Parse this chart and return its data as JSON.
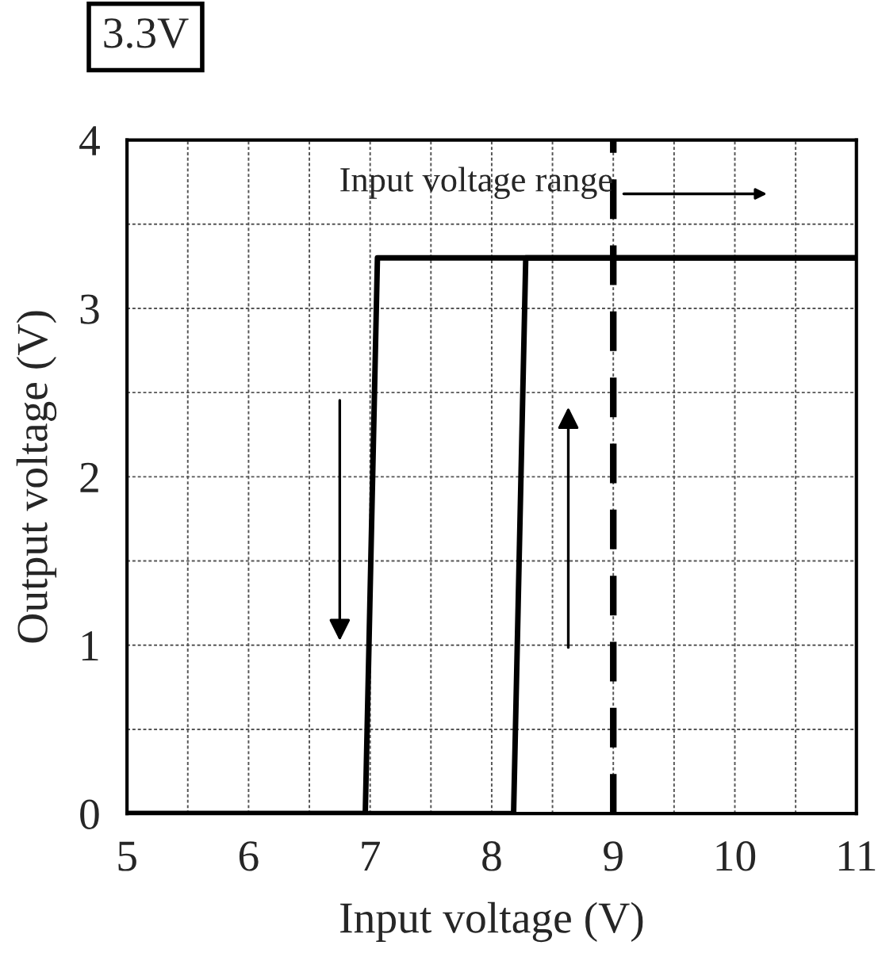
{
  "chart_data": {
    "type": "line",
    "title": "3.3V",
    "xlabel": "Input voltage (V)",
    "ylabel": "Output voltage (V)",
    "series": [
      {
        "color": "#000000",
        "x": [
          5,
          6.96,
          7.06,
          11
        ],
        "values": [
          0,
          0,
          3.3,
          3.3
        ]
      },
      {
        "color": "#000000",
        "x": [
          5,
          8.18,
          8.28,
          11
        ],
        "values": [
          0,
          0,
          3.3,
          3.3
        ]
      }
    ],
    "xlim": [
      5,
      11
    ],
    "ylim": [
      0,
      4
    ],
    "xticks": [
      5,
      {
        "value": 5.5,
        "label": null
      },
      6,
      {
        "value": 6.5,
        "label": null
      },
      7,
      {
        "value": 7.5,
        "label": null
      },
      8,
      {
        "value": 8.5,
        "label": null
      },
      9,
      {
        "value": 9.5,
        "label": null
      },
      10,
      {
        "value": 10.5,
        "label": null
      },
      11
    ],
    "yticks": [
      0,
      {
        "value": 0.5,
        "label": null
      },
      1,
      {
        "value": 1.5,
        "label": null
      },
      2,
      {
        "value": 2.5,
        "label": null
      },
      3,
      {
        "value": 3.5,
        "label": null
      },
      4
    ],
    "ref_lines": [
      {
        "axis": "x",
        "value": 9,
        "label": "Input voltage range",
        "color": "#000000",
        "line_style": "dashed"
      }
    ],
    "grid": true,
    "legend": false,
    "marker": "none",
    "line_style": "solid"
  }
}
